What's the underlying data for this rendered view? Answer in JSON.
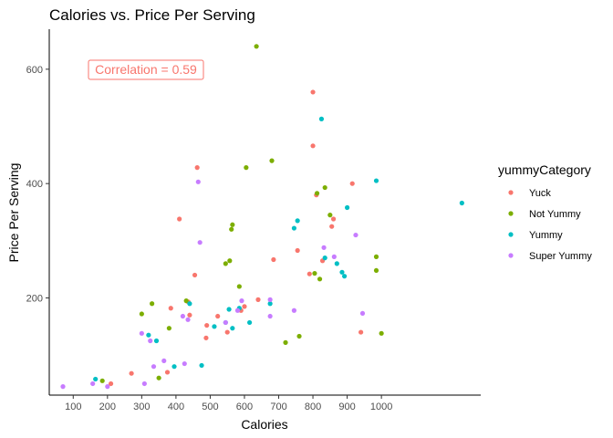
{
  "chart_data": {
    "type": "scatter",
    "title": "Calories vs. Price Per Serving",
    "xlabel": "Calories",
    "ylabel": "Price Per Serving",
    "xlim": [
      30,
      1290
    ],
    "ylim": [
      30,
      670
    ],
    "xticks": [
      100,
      200,
      300,
      400,
      500,
      600,
      700,
      800,
      900,
      1000
    ],
    "yticks": [
      200,
      400,
      600
    ],
    "grid": false,
    "annotation": "Correlation = 0.59",
    "legend": {
      "title": "yummyCategory",
      "position": "right",
      "entries": [
        "Yuck",
        "Not Yummy",
        "Yummy",
        "Super Yummy"
      ]
    },
    "colors": {
      "Yuck": "#F8766D",
      "Not Yummy": "#7CAE00",
      "Yummy": "#00BFC4",
      "Super Yummy": "#C77CFF",
      "annotation": "#F8766D",
      "axis": "#000000",
      "tick_text": "#4D4D4D"
    },
    "series": [
      {
        "name": "Yuck",
        "points": [
          [
            210,
            50
          ],
          [
            270,
            68
          ],
          [
            375,
            70
          ],
          [
            385,
            182
          ],
          [
            410,
            338
          ],
          [
            436,
            193
          ],
          [
            440,
            170
          ],
          [
            455,
            240
          ],
          [
            462,
            428
          ],
          [
            488,
            130
          ],
          [
            490,
            152
          ],
          [
            522,
            168
          ],
          [
            550,
            140
          ],
          [
            590,
            178
          ],
          [
            600,
            185
          ],
          [
            640,
            197
          ],
          [
            685,
            267
          ],
          [
            755,
            283
          ],
          [
            790,
            242
          ],
          [
            800,
            560
          ],
          [
            800,
            466
          ],
          [
            810,
            380
          ],
          [
            828,
            265
          ],
          [
            855,
            325
          ],
          [
            860,
            338
          ],
          [
            915,
            400
          ],
          [
            940,
            140
          ]
        ]
      },
      {
        "name": "Not Yummy",
        "points": [
          [
            185,
            55
          ],
          [
            300,
            172
          ],
          [
            330,
            190
          ],
          [
            350,
            60
          ],
          [
            380,
            147
          ],
          [
            430,
            195
          ],
          [
            545,
            260
          ],
          [
            557,
            265
          ],
          [
            562,
            320
          ],
          [
            565,
            328
          ],
          [
            585,
            220
          ],
          [
            605,
            428
          ],
          [
            635,
            640
          ],
          [
            680,
            440
          ],
          [
            720,
            122
          ],
          [
            760,
            133
          ],
          [
            805,
            243
          ],
          [
            812,
            383
          ],
          [
            820,
            233
          ],
          [
            835,
            393
          ],
          [
            850,
            345
          ],
          [
            985,
            272
          ],
          [
            985,
            248
          ],
          [
            1000,
            138
          ]
        ]
      },
      {
        "name": "Yummy",
        "points": [
          [
            165,
            58
          ],
          [
            320,
            135
          ],
          [
            343,
            125
          ],
          [
            395,
            80
          ],
          [
            440,
            190
          ],
          [
            475,
            82
          ],
          [
            512,
            150
          ],
          [
            545,
            157
          ],
          [
            555,
            180
          ],
          [
            565,
            147
          ],
          [
            585,
            182
          ],
          [
            615,
            157
          ],
          [
            675,
            190
          ],
          [
            745,
            322
          ],
          [
            755,
            335
          ],
          [
            825,
            513
          ],
          [
            835,
            270
          ],
          [
            870,
            260
          ],
          [
            885,
            245
          ],
          [
            892,
            238
          ],
          [
            900,
            358
          ],
          [
            985,
            405
          ],
          [
            1235,
            366
          ]
        ]
      },
      {
        "name": "Super Yummy",
        "points": [
          [
            70,
            45
          ],
          [
            157,
            50
          ],
          [
            200,
            45
          ],
          [
            300,
            138
          ],
          [
            308,
            50
          ],
          [
            325,
            125
          ],
          [
            335,
            80
          ],
          [
            365,
            90
          ],
          [
            420,
            168
          ],
          [
            425,
            85
          ],
          [
            435,
            162
          ],
          [
            465,
            403
          ],
          [
            470,
            297
          ],
          [
            545,
            157
          ],
          [
            580,
            178
          ],
          [
            592,
            195
          ],
          [
            675,
            168
          ],
          [
            675,
            197
          ],
          [
            745,
            178
          ],
          [
            832,
            288
          ],
          [
            862,
            272
          ],
          [
            925,
            310
          ],
          [
            945,
            173
          ]
        ]
      }
    ]
  }
}
